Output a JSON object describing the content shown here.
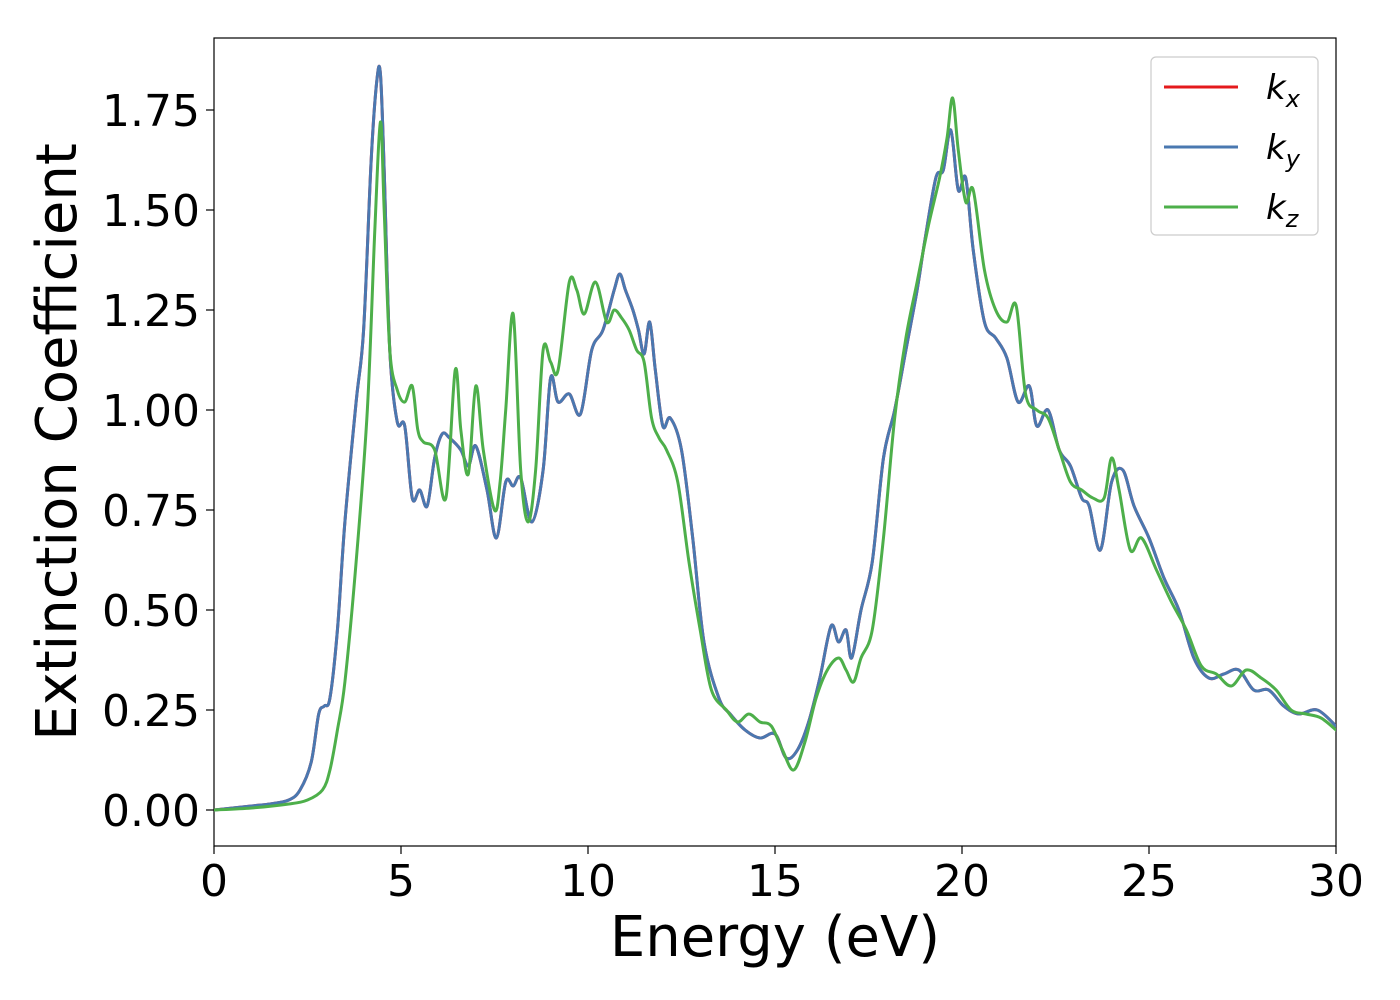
{
  "chart_data": {
    "type": "line",
    "xlabel": "Energy (eV)",
    "ylabel": "Extinction Coefficient",
    "xlim": [
      0,
      30
    ],
    "ylim": [
      -0.09,
      1.93
    ],
    "xticks": [
      0,
      5,
      10,
      15,
      20,
      25,
      30
    ],
    "yticks": [
      0.0,
      0.25,
      0.5,
      0.75,
      1.0,
      1.25,
      1.5,
      1.75
    ],
    "xtick_labels": [
      "0",
      "5",
      "10",
      "15",
      "20",
      "25",
      "30"
    ],
    "ytick_labels": [
      "0.00",
      "0.25",
      "0.50",
      "0.75",
      "1.00",
      "1.25",
      "1.50",
      "1.75"
    ],
    "grid": false,
    "legend": "top-right",
    "series": [
      {
        "name": "k_x",
        "label_main": "k",
        "label_sub": "x",
        "color": "#e41a1c",
        "x": [
          0,
          1,
          1.5,
          2,
          2.3,
          2.6,
          2.8,
          2.95,
          3.1,
          3.3,
          3.5,
          3.8,
          4.0,
          4.2,
          4.35,
          4.45,
          4.55,
          4.7,
          4.9,
          5.1,
          5.3,
          5.5,
          5.7,
          5.9,
          6.1,
          6.3,
          6.6,
          6.8,
          7.0,
          7.3,
          7.55,
          7.8,
          8.0,
          8.2,
          8.5,
          8.8,
          9.0,
          9.2,
          9.5,
          9.8,
          10.1,
          10.4,
          10.7,
          10.85,
          11.0,
          11.2,
          11.35,
          11.5,
          11.65,
          11.8,
          12.0,
          12.2,
          12.5,
          12.8,
          13.1,
          13.5,
          13.8,
          14.2,
          14.6,
          15.0,
          15.3,
          15.6,
          15.9,
          16.2,
          16.5,
          16.7,
          16.9,
          17.05,
          17.3,
          17.6,
          17.9,
          18.2,
          18.5,
          18.8,
          19.0,
          19.3,
          19.5,
          19.7,
          19.9,
          20.1,
          20.3,
          20.6,
          20.9,
          21.2,
          21.5,
          21.8,
          22.0,
          22.3,
          22.6,
          22.9,
          23.2,
          23.4,
          23.7,
          24.0,
          24.3,
          24.6,
          25.0,
          25.4,
          25.8,
          26.2,
          26.6,
          27.0,
          27.4,
          27.8,
          28.2,
          28.6,
          29.0,
          29.5,
          30
        ],
        "values": [
          0,
          0.01,
          0.015,
          0.025,
          0.05,
          0.12,
          0.24,
          0.26,
          0.28,
          0.45,
          0.72,
          1.02,
          1.2,
          1.62,
          1.82,
          1.84,
          1.6,
          1.15,
          0.97,
          0.96,
          0.78,
          0.8,
          0.76,
          0.88,
          0.94,
          0.93,
          0.9,
          0.86,
          0.91,
          0.8,
          0.68,
          0.82,
          0.81,
          0.83,
          0.72,
          0.85,
          1.08,
          1.02,
          1.04,
          0.99,
          1.15,
          1.2,
          1.3,
          1.34,
          1.3,
          1.25,
          1.2,
          1.14,
          1.22,
          1.1,
          0.96,
          0.98,
          0.9,
          0.68,
          0.42,
          0.28,
          0.24,
          0.2,
          0.18,
          0.19,
          0.13,
          0.15,
          0.22,
          0.33,
          0.46,
          0.42,
          0.45,
          0.38,
          0.5,
          0.62,
          0.88,
          1.0,
          1.15,
          1.3,
          1.42,
          1.58,
          1.6,
          1.7,
          1.55,
          1.58,
          1.4,
          1.22,
          1.18,
          1.13,
          1.02,
          1.06,
          0.96,
          1.0,
          0.9,
          0.86,
          0.78,
          0.76,
          0.65,
          0.82,
          0.85,
          0.76,
          0.68,
          0.58,
          0.5,
          0.38,
          0.33,
          0.34,
          0.35,
          0.3,
          0.3,
          0.26,
          0.24,
          0.25,
          0.21
        ]
      },
      {
        "name": "k_y",
        "label_main": "k",
        "label_sub": "y",
        "color": "#4a78b0",
        "x": [
          0,
          1,
          1.5,
          2,
          2.3,
          2.6,
          2.8,
          2.95,
          3.1,
          3.3,
          3.5,
          3.8,
          4.0,
          4.2,
          4.35,
          4.45,
          4.55,
          4.7,
          4.9,
          5.1,
          5.3,
          5.5,
          5.7,
          5.9,
          6.1,
          6.3,
          6.6,
          6.8,
          7.0,
          7.3,
          7.55,
          7.8,
          8.0,
          8.2,
          8.5,
          8.8,
          9.0,
          9.2,
          9.5,
          9.8,
          10.1,
          10.4,
          10.7,
          10.85,
          11.0,
          11.2,
          11.35,
          11.5,
          11.65,
          11.8,
          12.0,
          12.2,
          12.5,
          12.8,
          13.1,
          13.5,
          13.8,
          14.2,
          14.6,
          15.0,
          15.3,
          15.6,
          15.9,
          16.2,
          16.5,
          16.7,
          16.9,
          17.05,
          17.3,
          17.6,
          17.9,
          18.2,
          18.5,
          18.8,
          19.0,
          19.3,
          19.5,
          19.7,
          19.9,
          20.1,
          20.3,
          20.6,
          20.9,
          21.2,
          21.5,
          21.8,
          22.0,
          22.3,
          22.6,
          22.9,
          23.2,
          23.4,
          23.7,
          24.0,
          24.3,
          24.6,
          25.0,
          25.4,
          25.8,
          26.2,
          26.6,
          27.0,
          27.4,
          27.8,
          28.2,
          28.6,
          29.0,
          29.5,
          30
        ],
        "values": [
          0,
          0.01,
          0.015,
          0.025,
          0.05,
          0.12,
          0.24,
          0.26,
          0.28,
          0.45,
          0.72,
          1.02,
          1.2,
          1.62,
          1.82,
          1.84,
          1.6,
          1.15,
          0.97,
          0.96,
          0.78,
          0.8,
          0.76,
          0.88,
          0.94,
          0.93,
          0.9,
          0.86,
          0.91,
          0.8,
          0.68,
          0.82,
          0.81,
          0.83,
          0.72,
          0.85,
          1.08,
          1.02,
          1.04,
          0.99,
          1.15,
          1.2,
          1.3,
          1.34,
          1.3,
          1.25,
          1.2,
          1.14,
          1.22,
          1.1,
          0.96,
          0.98,
          0.9,
          0.68,
          0.42,
          0.28,
          0.24,
          0.2,
          0.18,
          0.19,
          0.13,
          0.15,
          0.22,
          0.33,
          0.46,
          0.42,
          0.45,
          0.38,
          0.5,
          0.62,
          0.88,
          1.0,
          1.15,
          1.3,
          1.42,
          1.58,
          1.6,
          1.7,
          1.55,
          1.58,
          1.4,
          1.22,
          1.18,
          1.13,
          1.02,
          1.06,
          0.96,
          1.0,
          0.9,
          0.86,
          0.78,
          0.76,
          0.65,
          0.82,
          0.85,
          0.76,
          0.68,
          0.58,
          0.5,
          0.38,
          0.33,
          0.34,
          0.35,
          0.3,
          0.3,
          0.26,
          0.24,
          0.25,
          0.21
        ]
      },
      {
        "name": "k_z",
        "label_main": "k",
        "label_sub": "z",
        "color": "#4daf4a",
        "x": [
          0,
          1,
          2,
          2.5,
          2.9,
          3.1,
          3.3,
          3.5,
          3.8,
          4.1,
          4.3,
          4.45,
          4.55,
          4.7,
          4.9,
          5.1,
          5.3,
          5.45,
          5.6,
          5.9,
          6.2,
          6.45,
          6.6,
          6.8,
          7.0,
          7.2,
          7.5,
          7.65,
          7.8,
          8.0,
          8.2,
          8.4,
          8.6,
          8.8,
          9.0,
          9.2,
          9.5,
          9.7,
          9.9,
          10.2,
          10.5,
          10.7,
          10.9,
          11.1,
          11.3,
          11.5,
          11.7,
          11.9,
          12.1,
          12.4,
          12.7,
          13.0,
          13.3,
          13.7,
          14.0,
          14.3,
          14.6,
          14.9,
          15.2,
          15.5,
          15.8,
          16.1,
          16.4,
          16.7,
          16.9,
          17.1,
          17.3,
          17.6,
          17.9,
          18.2,
          18.5,
          18.8,
          19.1,
          19.4,
          19.6,
          19.75,
          19.9,
          20.1,
          20.3,
          20.6,
          20.9,
          21.2,
          21.45,
          21.7,
          22.0,
          22.3,
          22.6,
          22.9,
          23.2,
          23.5,
          23.8,
          24.0,
          24.2,
          24.5,
          24.8,
          25.2,
          25.6,
          26.0,
          26.4,
          26.8,
          27.2,
          27.6,
          28.0,
          28.4,
          28.8,
          29.2,
          29.6,
          30
        ],
        "values": [
          0,
          0.005,
          0.015,
          0.025,
          0.05,
          0.1,
          0.2,
          0.32,
          0.62,
          1.0,
          1.45,
          1.72,
          1.5,
          1.15,
          1.05,
          1.02,
          1.06,
          0.95,
          0.92,
          0.9,
          0.78,
          1.1,
          0.95,
          0.84,
          1.06,
          0.9,
          0.75,
          0.82,
          1.0,
          1.24,
          0.85,
          0.72,
          0.85,
          1.15,
          1.12,
          1.1,
          1.32,
          1.3,
          1.24,
          1.32,
          1.22,
          1.25,
          1.23,
          1.2,
          1.15,
          1.12,
          0.98,
          0.93,
          0.9,
          0.82,
          0.62,
          0.45,
          0.3,
          0.25,
          0.22,
          0.24,
          0.22,
          0.21,
          0.15,
          0.1,
          0.17,
          0.28,
          0.35,
          0.38,
          0.35,
          0.32,
          0.38,
          0.45,
          0.68,
          0.98,
          1.18,
          1.32,
          1.46,
          1.58,
          1.68,
          1.78,
          1.65,
          1.52,
          1.55,
          1.35,
          1.25,
          1.22,
          1.26,
          1.04,
          1.0,
          0.98,
          0.9,
          0.82,
          0.8,
          0.78,
          0.78,
          0.88,
          0.8,
          0.65,
          0.68,
          0.6,
          0.52,
          0.45,
          0.36,
          0.34,
          0.31,
          0.35,
          0.33,
          0.3,
          0.25,
          0.24,
          0.23,
          0.2
        ]
      }
    ]
  }
}
